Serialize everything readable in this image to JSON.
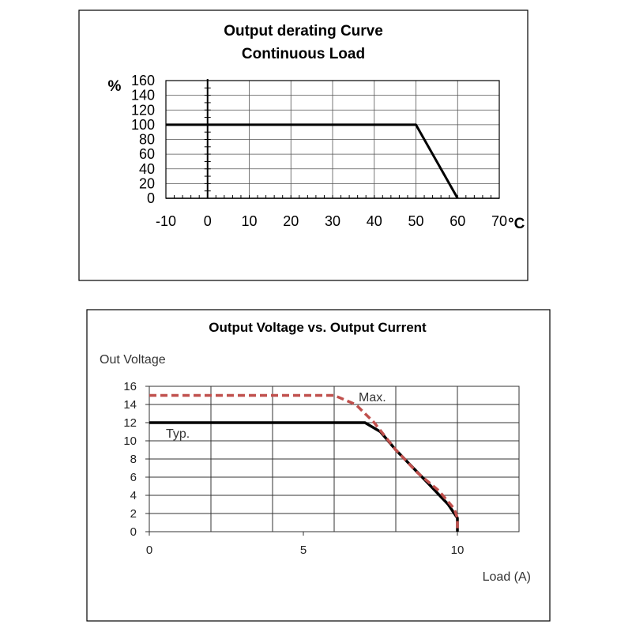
{
  "chart_data": [
    {
      "type": "line",
      "title_lines": [
        "Output derating Curve",
        "Continuous Load"
      ],
      "ylabel": "%",
      "xlabel": "°C",
      "xlim": [
        -10,
        70
      ],
      "ylim": [
        0,
        160
      ],
      "x_ticks": [
        "-10",
        "0",
        "10",
        "20",
        "30",
        "40",
        "50",
        "60",
        "70"
      ],
      "y_ticks": [
        "0",
        "20",
        "40",
        "60",
        "80",
        "100",
        "120",
        "140",
        "160"
      ],
      "grid": true,
      "series": [
        {
          "x": [
            -10,
            50,
            60
          ],
          "y": [
            100,
            100,
            0
          ],
          "color": "#000000"
        }
      ]
    },
    {
      "type": "line",
      "title": "Output Voltage vs. Output Current",
      "ylabel": "Out Voltage",
      "xlabel": "Load (A)",
      "xlim": [
        0,
        12
      ],
      "ylim": [
        0,
        16
      ],
      "x_ticks": [
        "0",
        "5",
        "10"
      ],
      "y_ticks": [
        "0",
        "2",
        "4",
        "6",
        "8",
        "10",
        "12",
        "14",
        "16"
      ],
      "grid": true,
      "series": [
        {
          "name": "Max.",
          "style": "dashed",
          "color": "#c0504d",
          "x": [
            0,
            6,
            6.7,
            7.3,
            8,
            8.7,
            9.4,
            9.9,
            10,
            10
          ],
          "y": [
            15,
            15,
            14,
            12,
            9,
            6.5,
            4.5,
            2.5,
            1.5,
            0
          ]
        },
        {
          "name": "Typ.",
          "style": "solid",
          "color": "#000000",
          "x": [
            0,
            7,
            7.5,
            8,
            9,
            9.7,
            10,
            10
          ],
          "y": [
            12,
            12,
            11,
            9,
            5.5,
            3,
            1.5,
            0
          ]
        }
      ]
    }
  ]
}
